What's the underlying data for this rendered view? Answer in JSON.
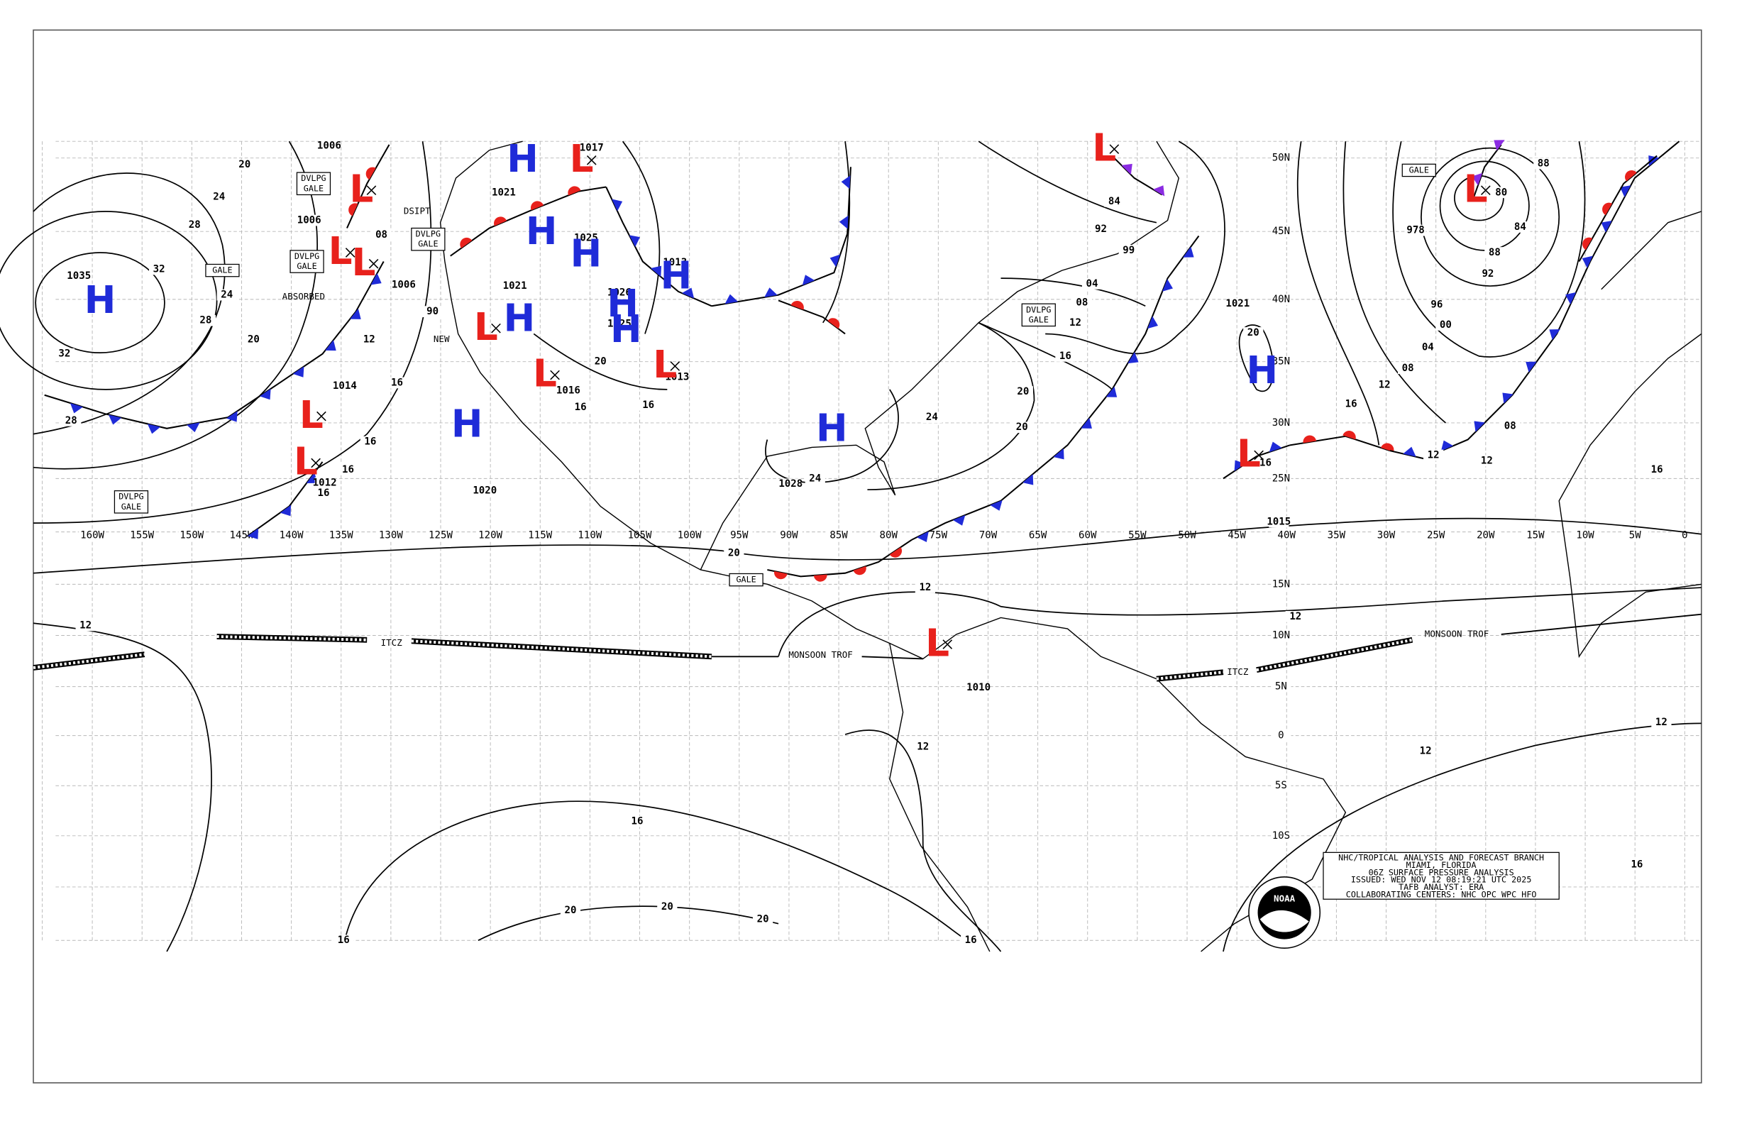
{
  "grid": {
    "longitudes": [
      "160W",
      "155W",
      "150W",
      "145W",
      "140W",
      "135W",
      "130W",
      "125W",
      "120W",
      "115W",
      "110W",
      "105W",
      "100W",
      "95W",
      "90W",
      "85W",
      "80W",
      "75W",
      "70W",
      "65W",
      "60W",
      "55W",
      "50W",
      "45W",
      "40W",
      "35W",
      "30W",
      "25W",
      "20W",
      "15W",
      "10W",
      "5W",
      "0"
    ],
    "latitudes": [
      "50N",
      "45N",
      "40N",
      "35N",
      "30N",
      "25N",
      "15N",
      "10N",
      "5N",
      "0",
      "5S",
      "10S"
    ]
  },
  "systems": [
    "H",
    "L",
    "L",
    "L",
    "L",
    "L",
    "H",
    "L",
    "H",
    "H",
    "L",
    "H",
    "L",
    "H",
    "H",
    "H",
    "L",
    "H",
    "H",
    "L",
    "H",
    "L",
    "L",
    "L"
  ],
  "isobar_labels": [
    "1035",
    "20",
    "24",
    "28",
    "32",
    "24",
    "28",
    "20",
    "32",
    "28",
    "1006",
    "1006",
    "08",
    "1006",
    "90",
    "12",
    "16",
    "1014",
    "16",
    "16",
    "16",
    "1012",
    "1021",
    "1017",
    "1025",
    "1026",
    "1025",
    "1013",
    "1021",
    "20",
    "16",
    "16",
    "1016",
    "1013",
    "1020",
    "1028",
    "24",
    "20",
    "20",
    "24",
    "16",
    "12",
    "08",
    "04",
    "99",
    "92",
    "84",
    "20",
    "12",
    "12",
    "12",
    "12",
    "16",
    "20",
    "20",
    "20",
    "16",
    "16",
    "1015",
    "1021",
    "20",
    "16",
    "12",
    "16",
    "08",
    "04",
    "00",
    "96",
    "92",
    "88",
    "84",
    "80",
    "88",
    "978",
    "12",
    "12",
    "08",
    "12",
    "12",
    "16",
    "16",
    "1010"
  ],
  "boxed_labels": [
    {
      "lines": [
        "DVLPG",
        "GALE"
      ]
    },
    {
      "lines": [
        "DVLPG",
        "GALE"
      ]
    },
    {
      "lines": [
        "DVLPG",
        "GALE"
      ]
    },
    {
      "lines": [
        "DVLPG",
        "GALE"
      ]
    },
    {
      "lines": [
        "DVLPG",
        "GALE"
      ]
    },
    {
      "lines": [
        "GALE"
      ]
    },
    {
      "lines": [
        "GALE"
      ]
    },
    {
      "lines": [
        "GALE"
      ]
    }
  ],
  "annotations": [
    "ABSORBED",
    "DSIPT",
    "NEW",
    "ITCZ",
    "ITCZ",
    "MONSOON TROF",
    "MONSOON TROF"
  ],
  "info_box": {
    "lines": [
      "NHC/TROPICAL ANALYSIS AND FORECAST BRANCH",
      "MIAMI, FLORIDA",
      "06Z SURFACE PRESSURE ANALYSIS",
      "ISSUED: WED NOV 12 08:19:21 UTC 2025",
      "TAFB ANALYST: ERA",
      "COLLABORATING CENTERS: NHC OPC WPC HFO"
    ]
  },
  "logo": "NOAA"
}
